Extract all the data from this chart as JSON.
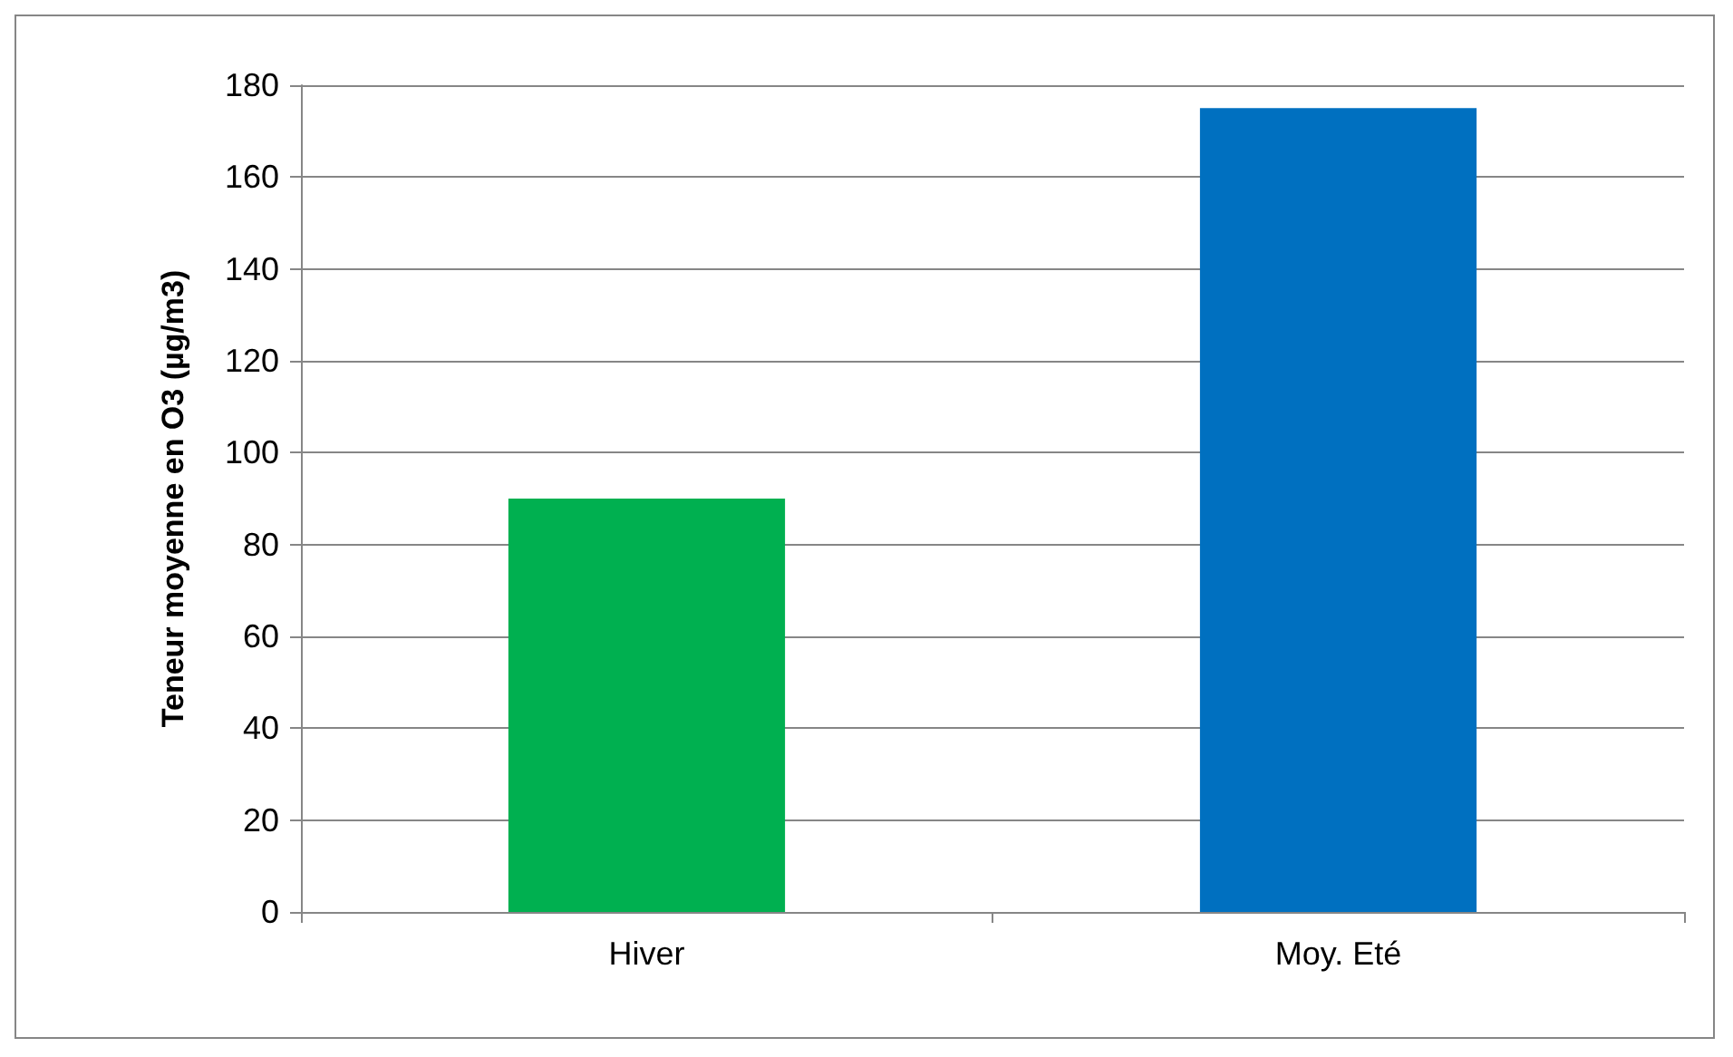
{
  "chart_data": {
    "type": "bar",
    "ylabel": "Teneur moyenne en O3 (µg/m3)",
    "categories": [
      "Hiver",
      "Moy. Eté"
    ],
    "values": [
      90,
      175
    ],
    "colors": [
      "#00b050",
      "#0070c0"
    ],
    "ylim": [
      0,
      180
    ],
    "yticks": [
      0,
      20,
      40,
      60,
      80,
      100,
      120,
      140,
      160,
      180
    ],
    "grid": "y"
  }
}
